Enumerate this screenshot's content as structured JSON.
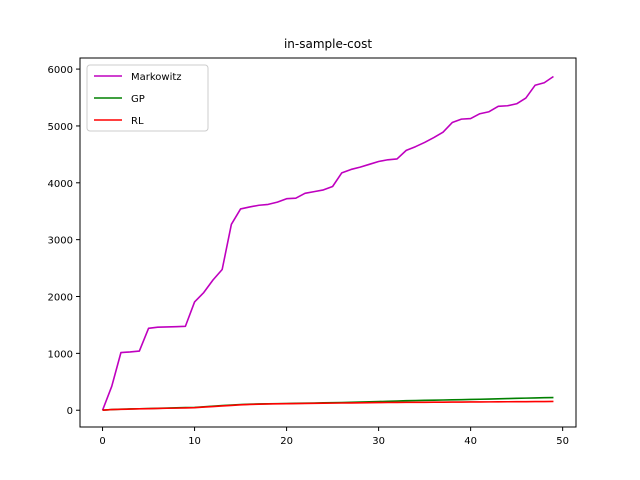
{
  "chart_data": {
    "type": "line",
    "title": "in-sample-cost",
    "xlabel": "",
    "ylabel": "",
    "xlim": [
      -2.45,
      51.45
    ],
    "ylim": [
      -295,
      6195
    ],
    "x_ticks": [
      0,
      10,
      20,
      30,
      40,
      50
    ],
    "y_ticks": [
      0,
      1000,
      2000,
      3000,
      4000,
      5000,
      6000
    ],
    "grid": false,
    "legend_position": "upper left",
    "x": [
      0,
      1,
      2,
      3,
      4,
      5,
      6,
      7,
      8,
      9,
      10,
      11,
      12,
      13,
      14,
      15,
      16,
      17,
      18,
      19,
      20,
      21,
      22,
      23,
      24,
      25,
      26,
      27,
      28,
      29,
      30,
      31,
      32,
      33,
      34,
      35,
      36,
      37,
      38,
      39,
      40,
      41,
      42,
      43,
      44,
      45,
      46,
      47,
      48,
      49
    ],
    "series": [
      {
        "name": "Markowitz",
        "color": "#bf00bf",
        "values": [
          0,
          420,
          1015,
          1025,
          1040,
          1440,
          1460,
          1465,
          1470,
          1475,
          1905,
          2070,
          2290,
          2475,
          3270,
          3540,
          3575,
          3605,
          3620,
          3660,
          3720,
          3730,
          3815,
          3845,
          3875,
          3935,
          4175,
          4235,
          4275,
          4325,
          4375,
          4405,
          4420,
          4570,
          4635,
          4710,
          4795,
          4890,
          5060,
          5120,
          5130,
          5215,
          5250,
          5345,
          5355,
          5390,
          5490,
          5715,
          5760,
          5870
        ]
      },
      {
        "name": "GP",
        "color": "#008000",
        "values": [
          0,
          12,
          18,
          22,
          26,
          30,
          34,
          38,
          42,
          46,
          50,
          60,
          72,
          82,
          92,
          100,
          106,
          110,
          113,
          116,
          118,
          121,
          124,
          127,
          130,
          133,
          136,
          140,
          144,
          148,
          152,
          157,
          162,
          167,
          171,
          174,
          177,
          180,
          183,
          186,
          189,
          193,
          197,
          201,
          205,
          209,
          213,
          217,
          220,
          222
        ]
      },
      {
        "name": "RL",
        "color": "#ff0000",
        "values": [
          0,
          12,
          16,
          20,
          24,
          28,
          32,
          35,
          37,
          40,
          45,
          55,
          65,
          75,
          85,
          95,
          102,
          107,
          110,
          113,
          115,
          117,
          119,
          121,
          123,
          125,
          127,
          129,
          131,
          133,
          135,
          136,
          137,
          138,
          139,
          140,
          141,
          142,
          143,
          144,
          145,
          146,
          147,
          148,
          149,
          150,
          151,
          152,
          153,
          154
        ]
      }
    ]
  }
}
